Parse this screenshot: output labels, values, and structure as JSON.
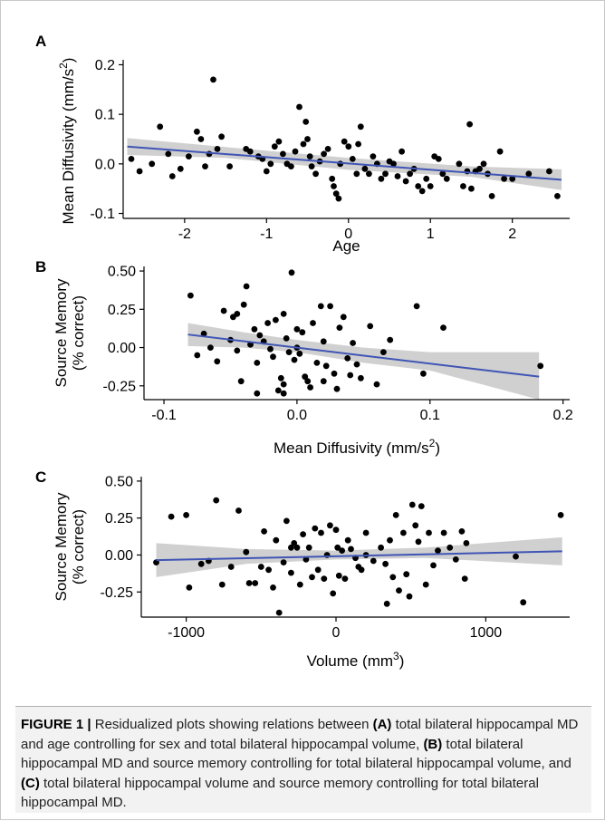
{
  "colors": {
    "point": "#000000",
    "fit_line": "#4055b5",
    "ci_band": "#c8c8c8"
  },
  "panels": [
    {
      "letter": "A",
      "xlabel": "Age",
      "ylabel": "Mean Diffusivity (mm/s",
      "ylabel_sup": "2",
      "ylabel_close": ")"
    },
    {
      "letter": "B",
      "xlabel": "Mean Diffusivity (mm/s",
      "xlabel_sup": "2",
      "xlabel_close": ")",
      "ylabel_line1": "Source Memory",
      "ylabel_line2": "(% correct)"
    },
    {
      "letter": "C",
      "xlabel": "Volume (mm",
      "xlabel_sup": "3",
      "xlabel_close": ")",
      "ylabel_line1": "Source Memory",
      "ylabel_line2": "(% correct)"
    }
  ],
  "caption": {
    "label": "FIGURE 1",
    "separator": " | ",
    "parts": [
      {
        "t": "Residualized plots showing relations between ",
        "b": false
      },
      {
        "t": "(A)",
        "b": true
      },
      {
        "t": " total bilateral hippocampal MD and age controlling for sex and total bilateral hippocampal volume, ",
        "b": false
      },
      {
        "t": "(B)",
        "b": true
      },
      {
        "t": " total bilateral hippocampal MD and source memory controlling for total bilateral hippocampal volume, and ",
        "b": false
      },
      {
        "t": "(C)",
        "b": true
      },
      {
        "t": " total bilateral hippocampal volume and source memory controlling for total bilateral hippocampal MD.",
        "b": false
      }
    ]
  },
  "chart_data": [
    {
      "type": "scatter",
      "title": "",
      "xlabel": "Age",
      "ylabel": "Mean Diffusivity (mm/s2)",
      "xlim": [
        -2.75,
        2.7
      ],
      "ylim": [
        -0.11,
        0.21
      ],
      "x_ticks": [
        -2,
        -1,
        0,
        1,
        2
      ],
      "x_tick_labels": [
        "-2",
        "-1",
        "0",
        "1",
        "2"
      ],
      "y_ticks": [
        -0.1,
        0.0,
        0.1,
        0.2
      ],
      "y_tick_labels": [
        "-0.1",
        "0.0",
        "0.1",
        "0.2"
      ],
      "fit_line": {
        "x": [
          -2.7,
          2.6
        ],
        "y": [
          0.035,
          -0.032
        ]
      },
      "ci_band": {
        "x": [
          -2.7,
          -1.5,
          0,
          1.5,
          2.6
        ],
        "upper": [
          0.052,
          0.034,
          0.012,
          -0.005,
          -0.011
        ],
        "lower": [
          0.018,
          0.012,
          -0.012,
          -0.026,
          -0.053
        ]
      },
      "points": [
        [
          -2.65,
          0.01
        ],
        [
          -2.55,
          -0.015
        ],
        [
          -2.4,
          0.0
        ],
        [
          -2.3,
          0.075
        ],
        [
          -2.2,
          0.02
        ],
        [
          -2.15,
          -0.025
        ],
        [
          -2.05,
          -0.01
        ],
        [
          -1.95,
          0.015
        ],
        [
          -1.85,
          0.065
        ],
        [
          -1.8,
          0.05
        ],
        [
          -1.75,
          -0.005
        ],
        [
          -1.7,
          0.02
        ],
        [
          -1.65,
          0.17
        ],
        [
          -1.6,
          0.03
        ],
        [
          -1.55,
          0.055
        ],
        [
          -1.45,
          -0.005
        ],
        [
          -1.25,
          0.03
        ],
        [
          -1.2,
          0.025
        ],
        [
          -1.1,
          0.015
        ],
        [
          -1.05,
          0.01
        ],
        [
          -1.0,
          -0.015
        ],
        [
          -0.95,
          0.0
        ],
        [
          -0.9,
          0.035
        ],
        [
          -0.85,
          0.045
        ],
        [
          -0.8,
          0.02
        ],
        [
          -0.75,
          0.0
        ],
        [
          -0.7,
          -0.005
        ],
        [
          -0.65,
          0.025
        ],
        [
          -0.6,
          0.115
        ],
        [
          -0.55,
          0.04
        ],
        [
          -0.52,
          0.085
        ],
        [
          -0.5,
          0.05
        ],
        [
          -0.47,
          0.015
        ],
        [
          -0.45,
          -0.005
        ],
        [
          -0.4,
          -0.02
        ],
        [
          -0.35,
          0.005
        ],
        [
          -0.3,
          0.02
        ],
        [
          -0.25,
          0.03
        ],
        [
          -0.2,
          -0.03
        ],
        [
          -0.18,
          -0.045
        ],
        [
          -0.15,
          -0.06
        ],
        [
          -0.12,
          -0.07
        ],
        [
          -0.1,
          0.0
        ],
        [
          -0.05,
          0.045
        ],
        [
          0.0,
          0.035
        ],
        [
          0.05,
          0.01
        ],
        [
          0.1,
          -0.02
        ],
        [
          0.12,
          0.04
        ],
        [
          0.15,
          0.075
        ],
        [
          0.2,
          -0.01
        ],
        [
          0.25,
          -0.02
        ],
        [
          0.3,
          0.015
        ],
        [
          0.35,
          0.0
        ],
        [
          0.4,
          -0.03
        ],
        [
          0.45,
          -0.02
        ],
        [
          0.5,
          0.005
        ],
        [
          0.55,
          0.0
        ],
        [
          0.6,
          -0.025
        ],
        [
          0.65,
          0.025
        ],
        [
          0.7,
          -0.035
        ],
        [
          0.75,
          -0.02
        ],
        [
          0.8,
          -0.01
        ],
        [
          0.85,
          -0.045
        ],
        [
          0.9,
          -0.055
        ],
        [
          0.95,
          -0.03
        ],
        [
          1.0,
          -0.045
        ],
        [
          1.05,
          0.015
        ],
        [
          1.1,
          0.01
        ],
        [
          1.15,
          -0.02
        ],
        [
          1.2,
          -0.03
        ],
        [
          1.35,
          0.0
        ],
        [
          1.4,
          -0.045
        ],
        [
          1.45,
          -0.015
        ],
        [
          1.48,
          0.08
        ],
        [
          1.5,
          -0.05
        ],
        [
          1.55,
          -0.015
        ],
        [
          1.6,
          -0.01
        ],
        [
          1.65,
          0.0
        ],
        [
          1.7,
          -0.02
        ],
        [
          1.75,
          -0.065
        ],
        [
          1.85,
          0.025
        ],
        [
          1.9,
          -0.03
        ],
        [
          2.0,
          -0.03
        ],
        [
          2.2,
          -0.02
        ],
        [
          2.45,
          -0.015
        ],
        [
          2.55,
          -0.065
        ]
      ]
    },
    {
      "type": "scatter",
      "title": "",
      "xlabel": "Mean Diffusivity (mm/s2)",
      "ylabel": "Source Memory (% correct)",
      "xlim": [
        -0.115,
        0.205
      ],
      "ylim": [
        -0.34,
        0.53
      ],
      "x_ticks": [
        -0.1,
        0.0,
        0.1,
        0.2
      ],
      "x_tick_labels": [
        "-0.1",
        "0.0",
        "0.1",
        "0.2"
      ],
      "y_ticks": [
        -0.25,
        0.0,
        0.25,
        0.5
      ],
      "y_tick_labels": [
        "-0.25",
        "0.00",
        "0.25",
        "0.50"
      ],
      "fit_line": {
        "x": [
          -0.082,
          0.182
        ],
        "y": [
          0.085,
          -0.19
        ]
      },
      "ci_band": {
        "x": [
          -0.082,
          -0.04,
          0.0,
          0.05,
          0.1,
          0.182
        ],
        "upper": [
          0.16,
          0.1,
          0.05,
          0.0,
          -0.03,
          -0.03
        ],
        "lower": [
          0.01,
          0.0,
          -0.03,
          -0.1,
          -0.15,
          -0.34
        ]
      },
      "points": [
        [
          -0.08,
          0.34
        ],
        [
          -0.075,
          -0.05
        ],
        [
          -0.07,
          0.09
        ],
        [
          -0.065,
          0.0
        ],
        [
          -0.06,
          -0.09
        ],
        [
          -0.055,
          0.24
        ],
        [
          -0.05,
          0.05
        ],
        [
          -0.048,
          0.2
        ],
        [
          -0.045,
          0.22
        ],
        [
          -0.042,
          -0.22
        ],
        [
          -0.04,
          0.28
        ],
        [
          -0.038,
          0.4
        ],
        [
          -0.035,
          0.02
        ],
        [
          -0.032,
          0.12
        ],
        [
          -0.03,
          -0.1
        ],
        [
          -0.028,
          0.08
        ],
        [
          -0.025,
          0.04
        ],
        [
          -0.022,
          0.16
        ],
        [
          -0.02,
          -0.01
        ],
        [
          -0.018,
          -0.06
        ],
        [
          -0.016,
          0.18
        ],
        [
          -0.014,
          -0.28
        ],
        [
          -0.012,
          -0.2
        ],
        [
          -0.01,
          0.22
        ],
        [
          -0.008,
          0.06
        ],
        [
          -0.006,
          -0.03
        ],
        [
          -0.004,
          0.49
        ],
        [
          -0.002,
          -0.08
        ],
        [
          0.0,
          0.12
        ],
        [
          0.002,
          -0.04
        ],
        [
          0.004,
          0.1
        ],
        [
          0.006,
          -0.19
        ],
        [
          0.008,
          -0.22
        ],
        [
          0.01,
          -0.26
        ],
        [
          0.012,
          0.16
        ],
        [
          0.015,
          -0.1
        ],
        [
          0.018,
          0.27
        ],
        [
          0.02,
          0.04
        ],
        [
          0.022,
          -0.12
        ],
        [
          0.025,
          0.27
        ],
        [
          0.028,
          -0.17
        ],
        [
          0.03,
          -0.27
        ],
        [
          0.032,
          0.13
        ],
        [
          0.035,
          0.2
        ],
        [
          0.038,
          -0.07
        ],
        [
          0.04,
          -0.18
        ],
        [
          0.042,
          0.03
        ],
        [
          0.045,
          -0.11
        ],
        [
          0.048,
          -0.2
        ],
        [
          0.055,
          0.14
        ],
        [
          0.06,
          -0.24
        ],
        [
          0.065,
          -0.03
        ],
        [
          0.07,
          0.05
        ],
        [
          0.09,
          0.27
        ],
        [
          0.095,
          -0.17
        ],
        [
          0.11,
          0.13
        ],
        [
          0.183,
          -0.12
        ],
        [
          -0.03,
          -0.3
        ],
        [
          -0.01,
          -0.3
        ],
        [
          0.0,
          0.0
        ],
        [
          0.02,
          -0.22
        ],
        [
          -0.045,
          -0.02
        ],
        [
          -0.01,
          -0.24
        ]
      ]
    },
    {
      "type": "scatter",
      "title": "",
      "xlabel": "Volume (mm3)",
      "ylabel": "Source Memory (% correct)",
      "xlim": [
        -1300,
        1560
      ],
      "ylim": [
        -0.42,
        0.53
      ],
      "x_ticks": [
        -1000,
        0,
        1000
      ],
      "x_tick_labels": [
        "-1000",
        "0",
        "1000"
      ],
      "y_ticks": [
        -0.25,
        0.0,
        0.25,
        0.5
      ],
      "y_tick_labels": [
        "-0.25",
        "0.00",
        "0.25",
        "0.50"
      ],
      "fit_line": {
        "x": [
          -1200,
          1510
        ],
        "y": [
          -0.035,
          0.025
        ]
      },
      "ci_band": {
        "x": [
          -1200,
          -600,
          0,
          600,
          1510
        ],
        "upper": [
          0.08,
          0.04,
          0.03,
          0.05,
          0.12
        ],
        "lower": [
          -0.15,
          -0.06,
          -0.03,
          -0.02,
          -0.07
        ]
      },
      "points": [
        [
          -1200,
          -0.05
        ],
        [
          -1100,
          0.26
        ],
        [
          -1000,
          0.27
        ],
        [
          -980,
          -0.22
        ],
        [
          -900,
          -0.06
        ],
        [
          -850,
          -0.04
        ],
        [
          -800,
          0.37
        ],
        [
          -760,
          -0.2
        ],
        [
          -700,
          -0.08
        ],
        [
          -650,
          0.3
        ],
        [
          -600,
          0.02
        ],
        [
          -580,
          -0.19
        ],
        [
          -540,
          -0.19
        ],
        [
          -500,
          -0.08
        ],
        [
          -480,
          0.16
        ],
        [
          -450,
          -0.1
        ],
        [
          -420,
          -0.22
        ],
        [
          -400,
          0.1
        ],
        [
          -380,
          -0.39
        ],
        [
          -350,
          -0.05
        ],
        [
          -330,
          0.23
        ],
        [
          -300,
          -0.12
        ],
        [
          -280,
          0.08
        ],
        [
          -260,
          0.05
        ],
        [
          -240,
          -0.2
        ],
        [
          -220,
          0.14
        ],
        [
          -200,
          -0.03
        ],
        [
          -180,
          0.05
        ],
        [
          -160,
          -0.15
        ],
        [
          -140,
          0.18
        ],
        [
          -120,
          -0.1
        ],
        [
          -100,
          0.15
        ],
        [
          -80,
          -0.16
        ],
        [
          -60,
          0.0
        ],
        [
          -40,
          0.2
        ],
        [
          -20,
          -0.26
        ],
        [
          0,
          0.17
        ],
        [
          10,
          0.05
        ],
        [
          20,
          -0.14
        ],
        [
          40,
          0.03
        ],
        [
          60,
          -0.16
        ],
        [
          80,
          0.1
        ],
        [
          100,
          0.04
        ],
        [
          130,
          -0.02
        ],
        [
          150,
          -0.08
        ],
        [
          170,
          -0.1
        ],
        [
          200,
          0.15
        ],
        [
          250,
          -0.04
        ],
        [
          300,
          0.05
        ],
        [
          330,
          -0.06
        ],
        [
          340,
          -0.33
        ],
        [
          360,
          0.1
        ],
        [
          380,
          -0.15
        ],
        [
          400,
          0.27
        ],
        [
          420,
          -0.24
        ],
        [
          450,
          0.15
        ],
        [
          470,
          -0.13
        ],
        [
          490,
          -0.28
        ],
        [
          510,
          0.34
        ],
        [
          530,
          0.2
        ],
        [
          550,
          0.09
        ],
        [
          570,
          0.33
        ],
        [
          600,
          -0.2
        ],
        [
          620,
          0.15
        ],
        [
          650,
          -0.07
        ],
        [
          680,
          0.03
        ],
        [
          720,
          0.15
        ],
        [
          760,
          0.05
        ],
        [
          800,
          -0.03
        ],
        [
          840,
          0.16
        ],
        [
          860,
          -0.16
        ],
        [
          870,
          0.08
        ],
        [
          1200,
          -0.01
        ],
        [
          1250,
          -0.32
        ],
        [
          1500,
          0.27
        ],
        [
          -300,
          0.05
        ],
        [
          200,
          0.0
        ]
      ]
    }
  ]
}
